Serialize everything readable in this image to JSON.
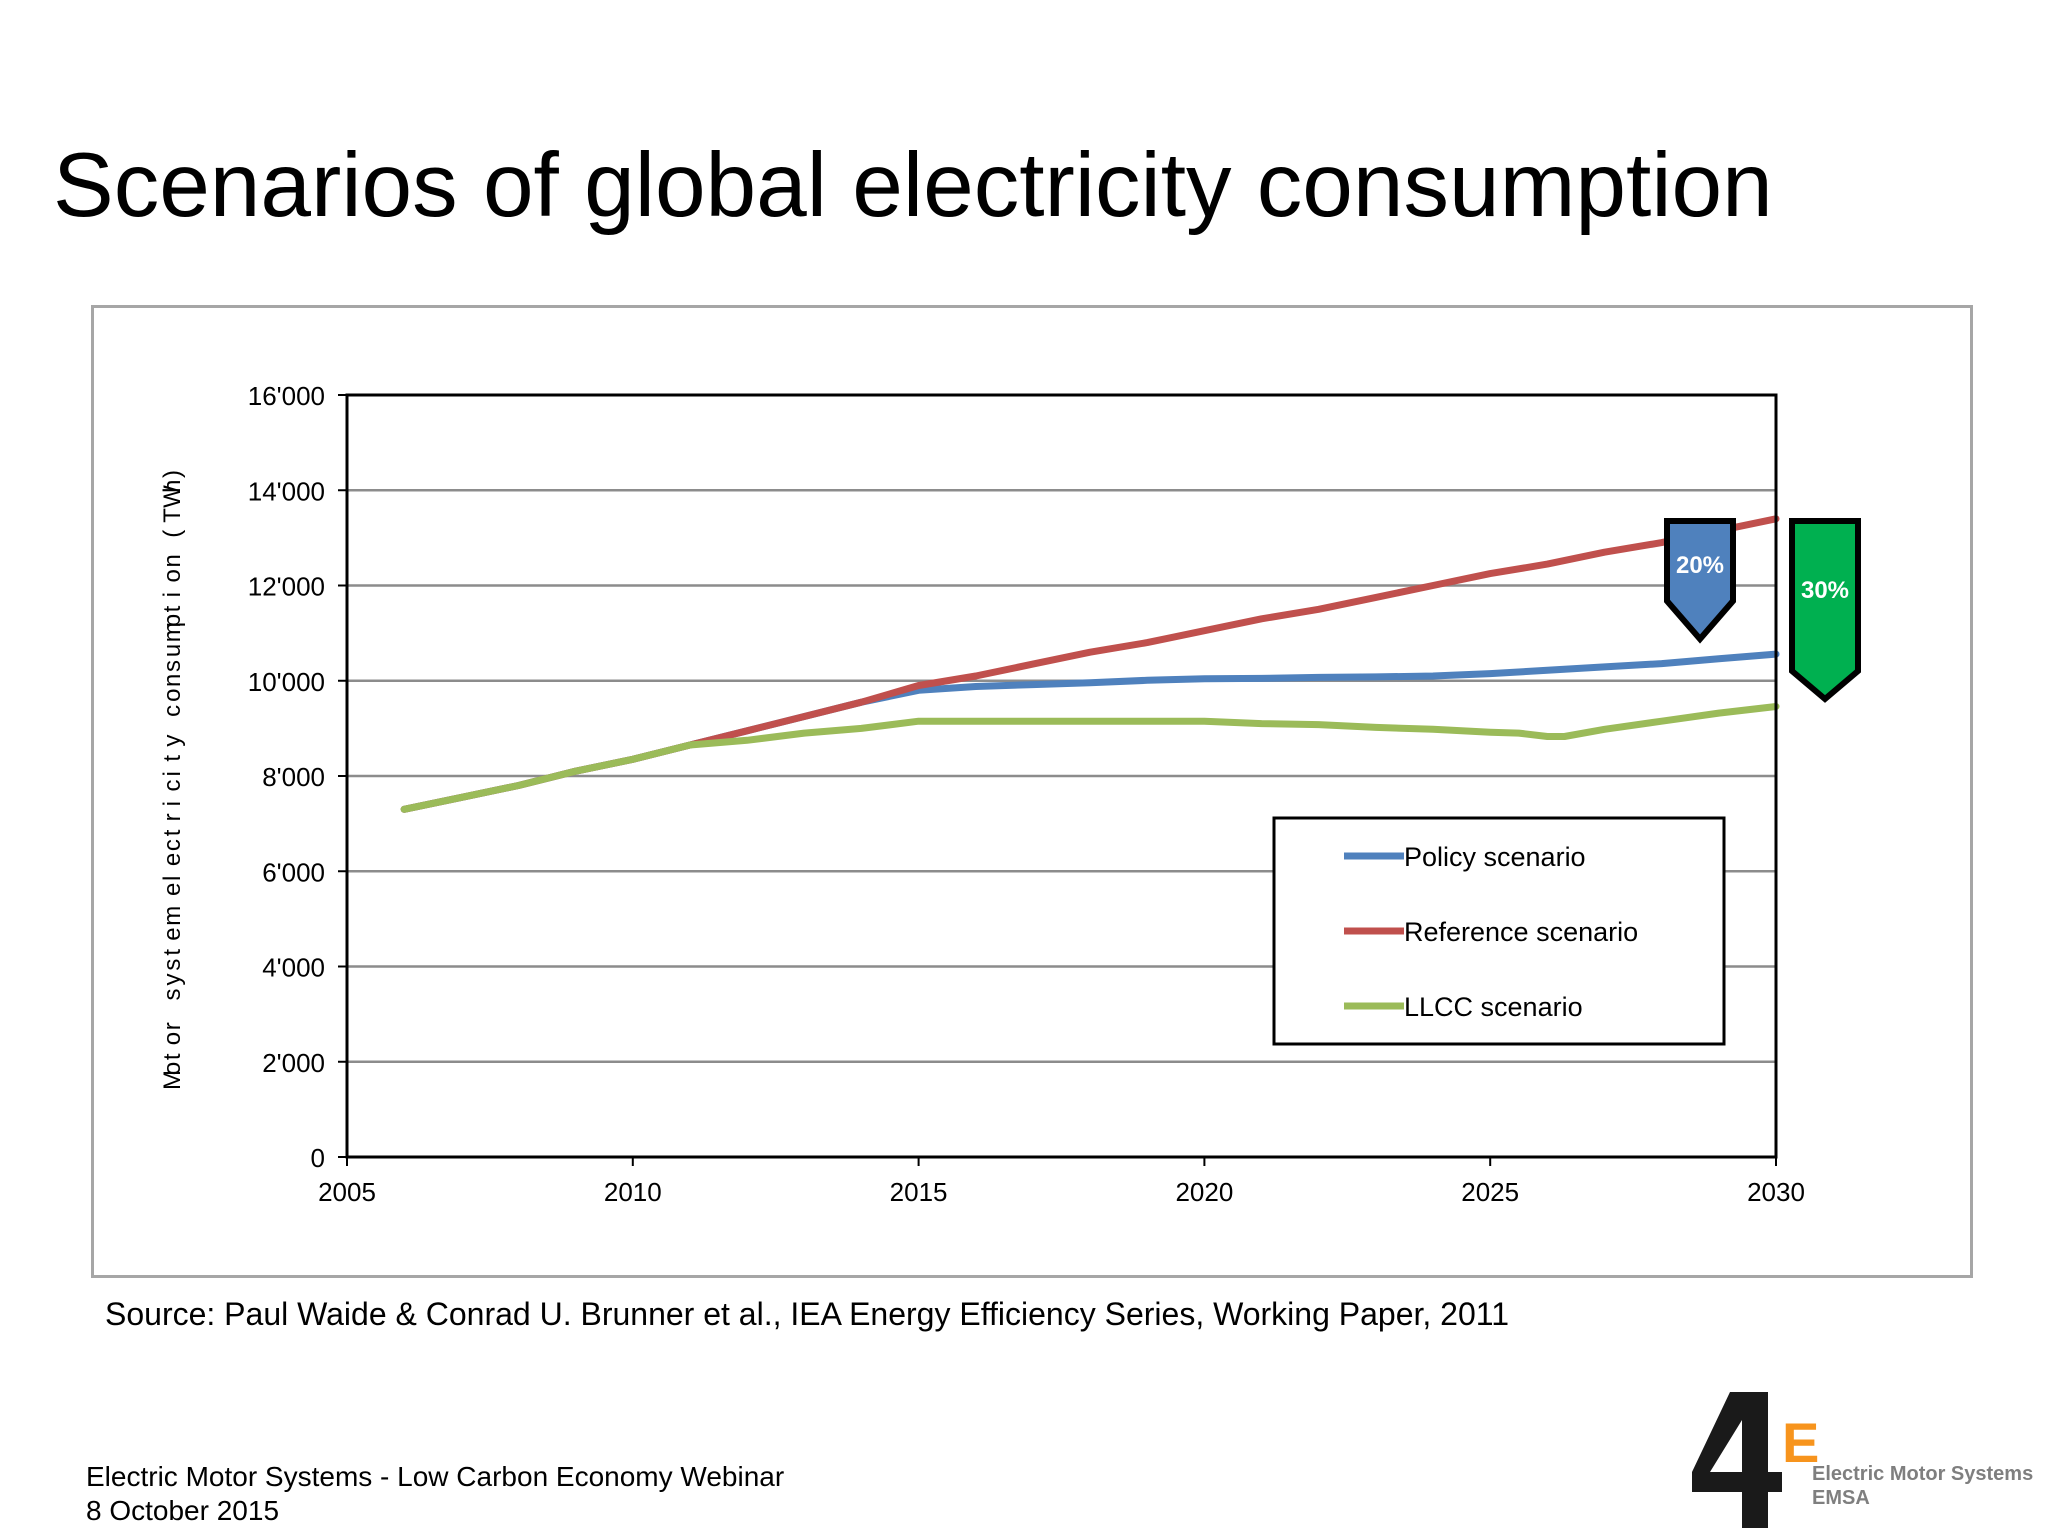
{
  "slide": {
    "title": "Scenarios of global electricity consumption",
    "source": "Source: Paul Waide & Conrad U. Brunner et al., IEA Energy Efficiency Series, Working Paper, 2011",
    "footer_line1": "Electric Motor Systems - Low Carbon Economy Webinar",
    "footer_line2": "8 October 2015"
  },
  "logo": {
    "mark": "4E",
    "line1": "Electric Motor Systems",
    "line2": "EMSA",
    "colors": {
      "number": "#1a1a1a",
      "letter": "#f7941d",
      "text": "#7f7f7f"
    }
  },
  "chart_data": {
    "type": "line",
    "title": "",
    "xlabel": "",
    "ylabel": "Motor system electricity consumption (TWh)",
    "xlim": [
      2005,
      2030
    ],
    "ylim": [
      0,
      16000
    ],
    "x_ticks": [
      2005,
      2010,
      2015,
      2020,
      2025,
      2030
    ],
    "x_tick_labels": [
      "2005",
      "2010",
      "2015",
      "2020",
      "2025",
      "2030"
    ],
    "y_ticks": [
      0,
      2000,
      4000,
      6000,
      8000,
      10000,
      12000,
      14000,
      16000
    ],
    "y_tick_labels": [
      "0",
      "2'000",
      "4'000",
      "6'000",
      "8'000",
      "10'000",
      "12'000",
      "14'000",
      "16'000"
    ],
    "grid": true,
    "legend_position": "bottom-right",
    "series": [
      {
        "name": "Policy scenario",
        "color": "#4f81bd",
        "x": [
          2006,
          2007,
          2008,
          2009,
          2010,
          2011,
          2012,
          2013,
          2014,
          2015,
          2016,
          2017,
          2018,
          2019,
          2020,
          2021,
          2022,
          2023,
          2024,
          2025,
          2026,
          2027,
          2028,
          2029,
          2030
        ],
        "y": [
          7300,
          7550,
          7800,
          8100,
          8350,
          8650,
          8950,
          9250,
          9550,
          9800,
          9880,
          9920,
          9960,
          10010,
          10040,
          10050,
          10070,
          10080,
          10100,
          10150,
          10220,
          10290,
          10360,
          10460,
          10560
        ]
      },
      {
        "name": "Reference scenario",
        "color": "#c0504d",
        "x": [
          2006,
          2007,
          2008,
          2009,
          2010,
          2011,
          2012,
          2013,
          2014,
          2015,
          2016,
          2017,
          2018,
          2019,
          2020,
          2021,
          2022,
          2023,
          2024,
          2025,
          2026,
          2027,
          2028,
          2029,
          2030
        ],
        "y": [
          7300,
          7550,
          7800,
          8100,
          8350,
          8650,
          8950,
          9250,
          9550,
          9900,
          10100,
          10350,
          10600,
          10800,
          11050,
          11300,
          11500,
          11750,
          12000,
          12250,
          12450,
          12700,
          12900,
          13150,
          13400
        ]
      },
      {
        "name": "LLCC scenario",
        "color": "#9bbb59",
        "x": [
          2006,
          2007,
          2008,
          2009,
          2010,
          2011,
          2012,
          2013,
          2014,
          2015,
          2016,
          2017,
          2018,
          2019,
          2020,
          2021,
          2022,
          2023,
          2024,
          2025,
          2025.5,
          2026,
          2026.3,
          2027,
          2028,
          2029,
          2030
        ],
        "y": [
          7300,
          7550,
          7800,
          8100,
          8350,
          8650,
          8750,
          8900,
          9000,
          9150,
          9150,
          9150,
          9150,
          9150,
          9150,
          9100,
          9080,
          9020,
          8980,
          8920,
          8900,
          8830,
          8830,
          8980,
          9150,
          9320,
          9460
        ]
      }
    ],
    "annotations": [
      {
        "text": "20%",
        "color": "#4f81bd"
      },
      {
        "text": "30%",
        "color": "#00b050"
      }
    ]
  }
}
